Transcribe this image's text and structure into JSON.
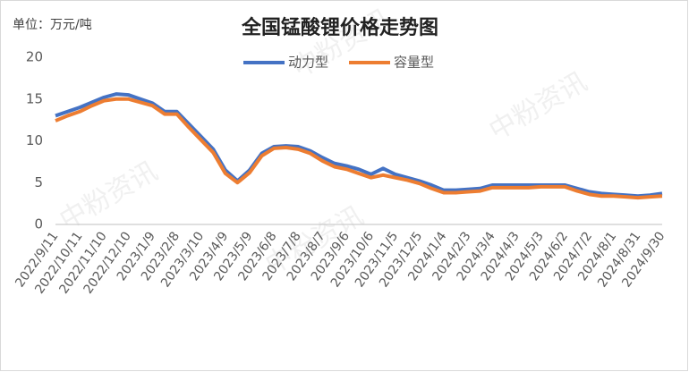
{
  "chart_data": {
    "type": "line",
    "title": "全国锰酸锂价格走势图",
    "unit_label": "单位：万元/吨",
    "watermark": "中粉资讯",
    "categories": [
      "2022/9/11",
      null,
      "2022/10/11",
      null,
      "2022/11/10",
      null,
      "2022/12/10",
      null,
      "2023/1/9",
      null,
      "2023/2/8",
      null,
      "2023/3/10",
      null,
      "2023/4/9",
      null,
      "2023/5/9",
      null,
      "2023/6/8",
      null,
      "2023/7/8",
      null,
      "2023/8/7",
      null,
      "2023/9/6",
      null,
      "2023/10/6",
      null,
      "2023/11/5",
      null,
      "2023/12/5",
      null,
      "2024/1/4",
      null,
      "2024/2/3",
      null,
      "2024/3/4",
      null,
      "2024/4/3",
      null,
      "2024/5/3",
      null,
      "2024/6/2",
      null,
      "2024/7/2",
      null,
      "2024/8/1",
      null,
      "2024/8/31",
      null,
      "2024/9/30"
    ],
    "series": [
      {
        "name": "动力型",
        "color": "#4472c4",
        "values": [
          13.0,
          13.5,
          14.0,
          14.6,
          15.2,
          15.6,
          15.5,
          15.0,
          14.5,
          13.5,
          13.5,
          12.0,
          10.5,
          9.0,
          6.5,
          5.2,
          6.5,
          8.5,
          9.3,
          9.4,
          9.3,
          8.8,
          8.0,
          7.3,
          7.0,
          6.6,
          6.0,
          6.7,
          6.0,
          5.6,
          5.2,
          4.7,
          4.1,
          4.1,
          4.2,
          4.3,
          4.7,
          4.7,
          4.7,
          4.7,
          4.7,
          4.7,
          4.7,
          4.3,
          3.9,
          3.7,
          3.6,
          3.5,
          3.4,
          3.5,
          3.7
        ]
      },
      {
        "name": "容量型",
        "color": "#ed7d31",
        "values": [
          12.4,
          13.0,
          13.5,
          14.2,
          14.8,
          15.0,
          15.0,
          14.6,
          14.2,
          13.2,
          13.2,
          11.6,
          10.1,
          8.6,
          6.1,
          5.0,
          6.2,
          8.2,
          9.1,
          9.2,
          9.0,
          8.5,
          7.6,
          6.9,
          6.6,
          6.1,
          5.6,
          5.9,
          5.6,
          5.3,
          4.9,
          4.3,
          3.8,
          3.8,
          3.9,
          4.0,
          4.4,
          4.4,
          4.4,
          4.4,
          4.5,
          4.5,
          4.5,
          4.0,
          3.6,
          3.4,
          3.4,
          3.3,
          3.2,
          3.3,
          3.4
        ]
      }
    ],
    "ylim": [
      0,
      20
    ],
    "yticks": [
      0,
      5,
      10,
      15,
      20
    ],
    "grid": false
  }
}
